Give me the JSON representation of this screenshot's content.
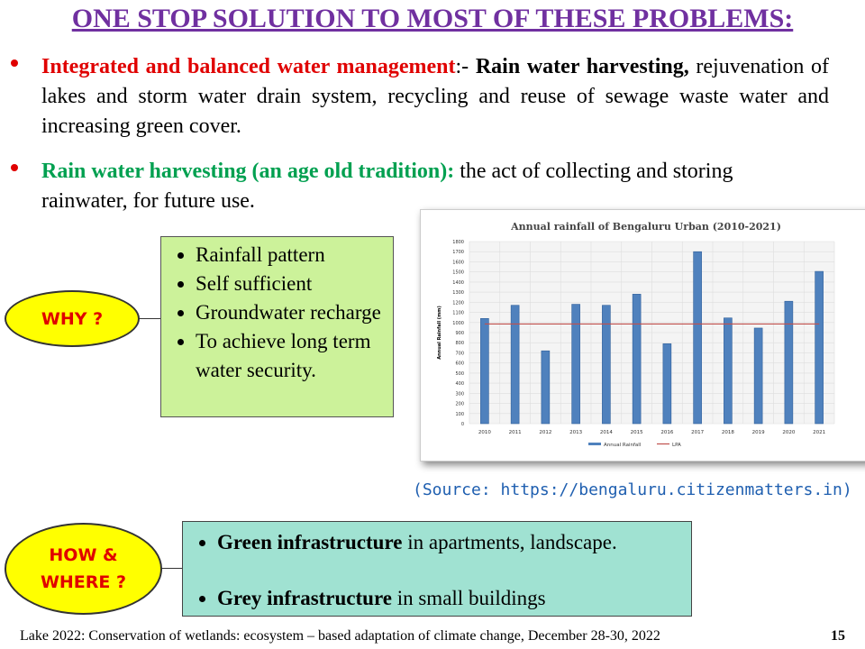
{
  "title": "ONE STOP SOLUTION TO MOST OF THESE PROBLEMS:",
  "bullets": [
    {
      "highlight": "Integrated and balanced water management",
      "separator": ":- ",
      "bold_text": "Rain water harvesting,",
      "text": " rejuvenation of lakes and storm water drain system, recycling and reuse of sewage waste water and increasing green cover."
    },
    {
      "highlight": "Rain water harvesting (an age old tradition):",
      "text": " the act of collecting and storing rainwater, for future use."
    }
  ],
  "why": {
    "label": "WHY  ?",
    "items": [
      "Rainfall pattern",
      "Self sufficient",
      "Groundwater recharge",
      "To achieve long term water security."
    ]
  },
  "how": {
    "label_line1": "HOW &",
    "label_line2": "WHERE ?",
    "items": [
      {
        "bold": "Green infrastructure",
        "text": " in apartments, landscape."
      },
      {
        "bold": "Grey infrastructure",
        "text": " in small buildings"
      }
    ]
  },
  "source": "(Source: https://bengaluru.citizenmatters.in)",
  "footer": "Lake 2022: Conservation of wetlands:  ecosystem – based adaptation of climate  change, December 28-30, 2022",
  "page_number": "15",
  "colors": {
    "title": "#7030a0",
    "highlight_red": "#e00000",
    "highlight_green": "#00a050",
    "why_box": "#ccf29a",
    "how_box": "#a0e2d2",
    "ellipse": "#ffff00",
    "bar": "#4f81bd",
    "lpa": "#c0504d"
  },
  "chart_data": {
    "type": "bar",
    "title": "Annual rainfall of Bengaluru Urban (2010-2021)",
    "xlabel": "",
    "ylabel": "Annual Rainfall (mm)",
    "ylim": [
      0,
      1800
    ],
    "yticks": [
      0,
      100,
      200,
      300,
      400,
      500,
      600,
      700,
      800,
      900,
      1000,
      1100,
      1200,
      1300,
      1400,
      1500,
      1600,
      1700,
      1800
    ],
    "grid": true,
    "legend": "bottom",
    "categories": [
      "2010",
      "2011",
      "2012",
      "2013",
      "2014",
      "2015",
      "2016",
      "2017",
      "2018",
      "2019",
      "2020",
      "2021"
    ],
    "series": [
      {
        "name": "Annual Rainfall",
        "type": "bar",
        "values": [
          1040,
          1170,
          720,
          1180,
          1170,
          1280,
          790,
          1700,
          1045,
          945,
          1210,
          1505
        ]
      },
      {
        "name": "LPA",
        "type": "line",
        "values": [
          985,
          985,
          985,
          985,
          985,
          985,
          985,
          985,
          985,
          985,
          985,
          985
        ]
      }
    ]
  }
}
